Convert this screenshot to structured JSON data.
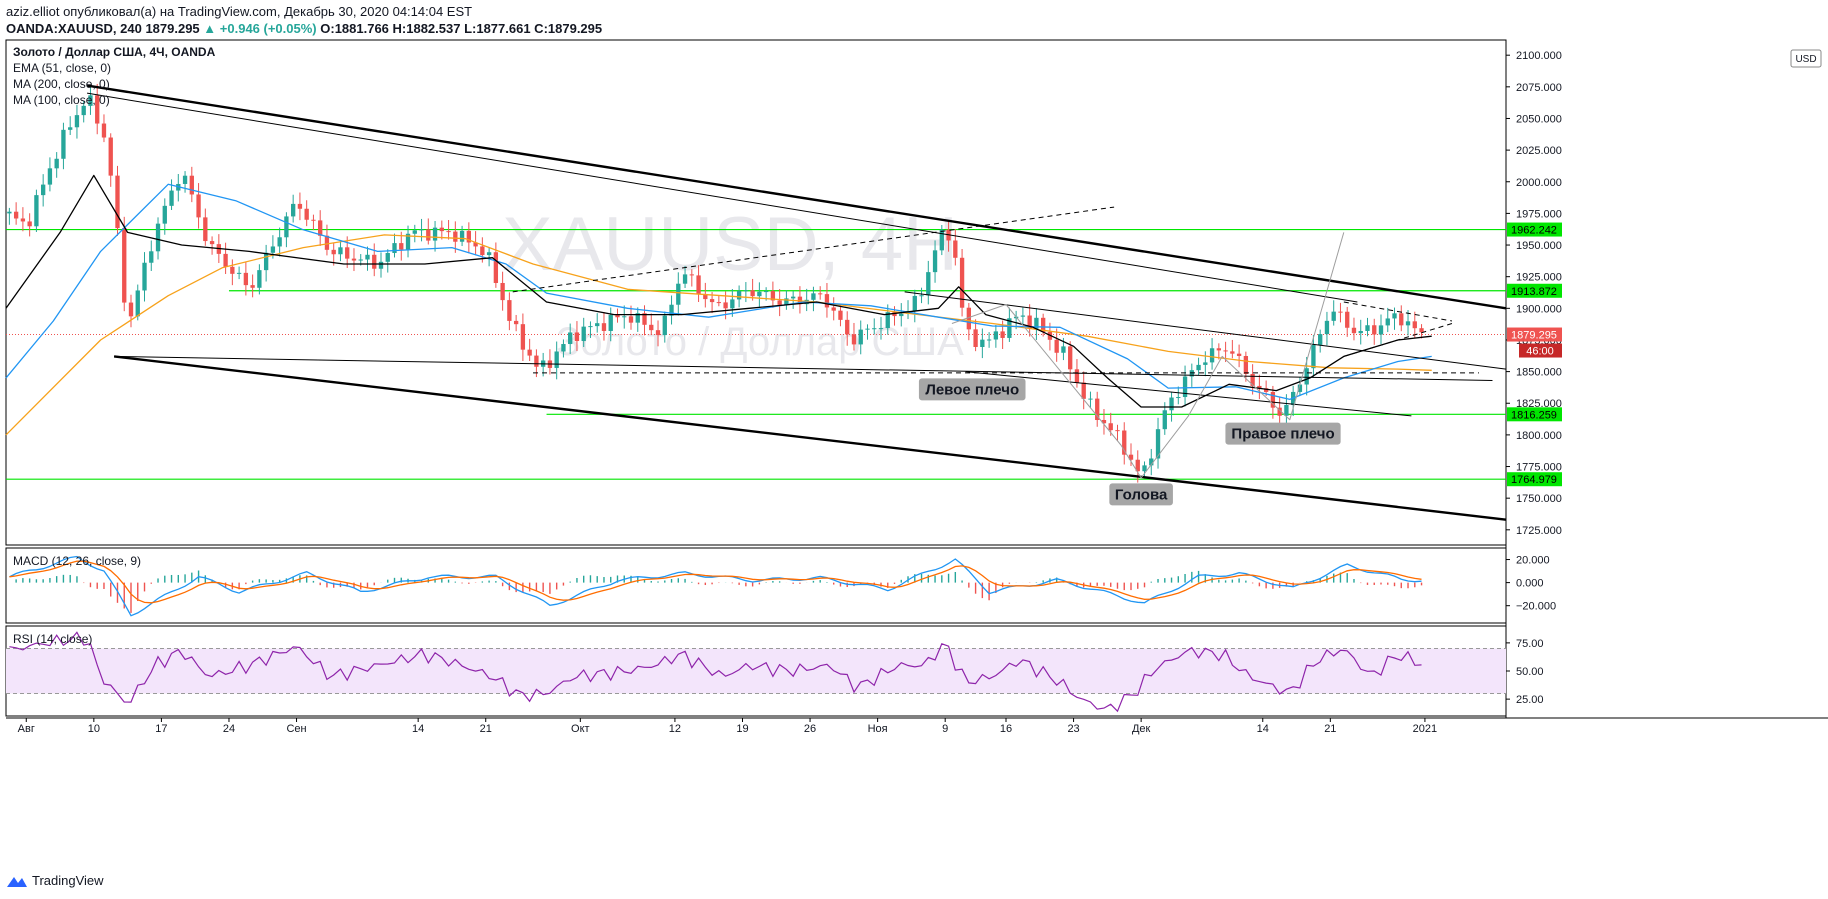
{
  "header": {
    "publisher_line": "aziz.elliot опубликовал(а) на TradingView.com, Декабрь 30, 2020 04:14:04 EST",
    "symbol": "OANDA:XAUUSD, 240",
    "last": "1879.295",
    "change": "▲ +0.946 (+0.05%)",
    "ohlc": "O:1881.766 H:1882.537 L:1877.661 C:1879.295"
  },
  "legend": {
    "title": "Золото / Доллар США, 4Ч, OANDA",
    "ema51": "EMA (51, close, 0)",
    "ma200": "MA (200, close, 0)",
    "ma100": "MA (100, close, 0)"
  },
  "watermark": {
    "big": "XAUUSD, 4H",
    "small": "Золото / Доллар США"
  },
  "currency_badge": "USD",
  "annotations": {
    "left_shoulder": "Левое плечо",
    "head": "Голова",
    "right_shoulder": "Правое плечо"
  },
  "macd": {
    "title": "MACD (12, 26, close, 9)",
    "ticks": [
      "20.000",
      "0.000",
      "−20.000"
    ]
  },
  "rsi": {
    "title": "RSI (14, close)",
    "ticks": [
      "75.00",
      "50.00",
      "25.00"
    ]
  },
  "footer": {
    "brand": "TradingView"
  },
  "colors": {
    "ema": "#000000",
    "ma200": "#f7a21b",
    "ma100": "#2196f3",
    "level": "#00e600",
    "up": "#26a69a",
    "down": "#ef5350"
  },
  "chart_data": {
    "type": "candlestick",
    "price_axis": [
      "2100.000",
      "2075.000",
      "2050.000",
      "2025.000",
      "2000.000",
      "1975.000",
      "1950.000",
      "1925.000",
      "1900.000",
      "1875.000",
      "1850.000",
      "1825.000",
      "1800.000",
      "1775.000",
      "1750.000",
      "1725.000"
    ],
    "price_axis_values": [
      2100,
      2075,
      2050,
      2025,
      2000,
      1975,
      1950,
      1925,
      1900,
      1875,
      1850,
      1825,
      1800,
      1775,
      1750,
      1725
    ],
    "ylim": [
      1713,
      2112
    ],
    "x_ticks": [
      "Авг",
      "10",
      "17",
      "24",
      "Сен",
      "14",
      "21",
      "Окт",
      "12",
      "19",
      "26",
      "Ноя",
      "9",
      "16",
      "23",
      "Дек",
      "14",
      "21",
      "2021"
    ],
    "x_tick_index": [
      3,
      13,
      23,
      33,
      43,
      61,
      71,
      85,
      99,
      109,
      119,
      129,
      139,
      148,
      158,
      168,
      186,
      196,
      210
    ],
    "xlim": [
      0,
      222
    ],
    "levels": [
      {
        "value": 1962.242,
        "label": "1962.242"
      },
      {
        "value": 1913.872,
        "label": "1913.872"
      },
      {
        "value": 1816.259,
        "label": "1816.259"
      },
      {
        "value": 1764.979,
        "label": "1764.979"
      }
    ],
    "current_price": {
      "value": 1879.295,
      "label": "1879.295",
      "timer": "46:00"
    },
    "anchors": [
      [
        0,
        1975
      ],
      [
        3,
        1965
      ],
      [
        8,
        2030
      ],
      [
        12,
        2068
      ],
      [
        15,
        2030
      ],
      [
        18,
        1885
      ],
      [
        22,
        1960
      ],
      [
        26,
        2010
      ],
      [
        30,
        1950
      ],
      [
        36,
        1915
      ],
      [
        43,
        1985
      ],
      [
        48,
        1945
      ],
      [
        55,
        1935
      ],
      [
        60,
        1960
      ],
      [
        66,
        1960
      ],
      [
        71,
        1945
      ],
      [
        75,
        1885
      ],
      [
        79,
        1850
      ],
      [
        84,
        1880
      ],
      [
        92,
        1895
      ],
      [
        97,
        1880
      ],
      [
        100,
        1930
      ],
      [
        105,
        1900
      ],
      [
        110,
        1915
      ],
      [
        115,
        1905
      ],
      [
        121,
        1910
      ],
      [
        125,
        1875
      ],
      [
        130,
        1890
      ],
      [
        135,
        1905
      ],
      [
        138,
        1955
      ],
      [
        140,
        1960
      ],
      [
        142,
        1880
      ],
      [
        145,
        1872
      ],
      [
        150,
        1895
      ],
      [
        153,
        1885
      ],
      [
        157,
        1860
      ],
      [
        160,
        1825
      ],
      [
        165,
        1795
      ],
      [
        168,
        1765
      ],
      [
        172,
        1825
      ],
      [
        177,
        1860
      ],
      [
        181,
        1870
      ],
      [
        184,
        1845
      ],
      [
        189,
        1815
      ],
      [
        193,
        1860
      ],
      [
        196,
        1900
      ],
      [
        200,
        1880
      ],
      [
        203,
        1885
      ],
      [
        206,
        1895
      ],
      [
        209,
        1880
      ]
    ],
    "ema51": [
      [
        0,
        1900
      ],
      [
        8,
        1960
      ],
      [
        13,
        2005
      ],
      [
        18,
        1960
      ],
      [
        26,
        1950
      ],
      [
        36,
        1945
      ],
      [
        50,
        1935
      ],
      [
        62,
        1935
      ],
      [
        72,
        1940
      ],
      [
        80,
        1905
      ],
      [
        90,
        1895
      ],
      [
        100,
        1895
      ],
      [
        110,
        1900
      ],
      [
        120,
        1905
      ],
      [
        130,
        1895
      ],
      [
        138,
        1900
      ],
      [
        141,
        1917
      ],
      [
        145,
        1895
      ],
      [
        152,
        1885
      ],
      [
        158,
        1870
      ],
      [
        163,
        1845
      ],
      [
        168,
        1822
      ],
      [
        174,
        1822
      ],
      [
        181,
        1840
      ],
      [
        188,
        1835
      ],
      [
        193,
        1845
      ],
      [
        198,
        1862
      ],
      [
        206,
        1875
      ],
      [
        211,
        1878
      ]
    ],
    "ma100": [
      [
        0,
        1845
      ],
      [
        7,
        1890
      ],
      [
        14,
        1945
      ],
      [
        24,
        1998
      ],
      [
        34,
        1985
      ],
      [
        44,
        1962
      ],
      [
        55,
        1945
      ],
      [
        66,
        1948
      ],
      [
        74,
        1935
      ],
      [
        80,
        1912
      ],
      [
        92,
        1900
      ],
      [
        104,
        1893
      ],
      [
        118,
        1905
      ],
      [
        128,
        1902
      ],
      [
        138,
        1893
      ],
      [
        146,
        1886
      ],
      [
        156,
        1885
      ],
      [
        166,
        1860
      ],
      [
        172,
        1837
      ],
      [
        182,
        1838
      ],
      [
        190,
        1828
      ],
      [
        198,
        1845
      ],
      [
        206,
        1858
      ],
      [
        211,
        1862
      ]
    ],
    "ma200": [
      [
        0,
        1800
      ],
      [
        14,
        1875
      ],
      [
        24,
        1910
      ],
      [
        32,
        1932
      ],
      [
        44,
        1948
      ],
      [
        56,
        1958
      ],
      [
        68,
        1955
      ],
      [
        78,
        1935
      ],
      [
        92,
        1915
      ],
      [
        106,
        1910
      ],
      [
        120,
        1905
      ],
      [
        132,
        1897
      ],
      [
        146,
        1888
      ],
      [
        160,
        1878
      ],
      [
        172,
        1866
      ],
      [
        184,
        1858
      ],
      [
        196,
        1853
      ],
      [
        206,
        1852
      ],
      [
        211,
        1851
      ]
    ],
    "trendlines": [
      {
        "p1": [
          12,
          2076
        ],
        "p2": [
          222,
          1900
        ],
        "width": 2.4,
        "color": "#000000"
      },
      {
        "p1": [
          16,
          1862
        ],
        "p2": [
          222,
          1733
        ],
        "width": 2.4,
        "color": "#000000"
      },
      {
        "p1": [
          12,
          2070
        ],
        "p2": [
          200,
          1905
        ],
        "width": 1,
        "color": "#000000"
      },
      {
        "p1": [
          16,
          1862
        ],
        "p2": [
          220,
          1843
        ],
        "width": 1,
        "color": "#000000"
      },
      {
        "p1": [
          133,
          1913
        ],
        "p2": [
          222,
          1852
        ],
        "width": 1,
        "color": "#000000"
      },
      {
        "p1": [
          75,
          1913
        ],
        "p2": [
          164,
          1980
        ],
        "width": 1,
        "color": "#000000",
        "dash": true
      },
      {
        "p1": [
          78,
          1849
        ],
        "p2": [
          218,
          1849
        ],
        "width": 1,
        "color": "#000000",
        "dash": true
      },
      {
        "p1": [
          198,
          1905
        ],
        "p2": [
          214,
          1890
        ],
        "width": 1,
        "color": "#000000",
        "dash": true
      },
      {
        "p1": [
          198,
          1862
        ],
        "p2": [
          214,
          1888
        ],
        "width": 1,
        "color": "#000000",
        "dash": true
      },
      {
        "p1": [
          142,
          1850
        ],
        "p2": [
          208,
          1815
        ],
        "width": 1,
        "color": "#000000"
      }
    ],
    "pattern_lines": [
      [
        [
          140,
          1888
        ],
        [
          148,
          1903
        ],
        [
          165,
          1792
        ],
        [
          168,
          1766
        ],
        [
          175,
          1815
        ],
        [
          180,
          1862
        ],
        [
          190,
          1812
        ],
        [
          198,
          1960
        ]
      ]
    ],
    "annotation_pos": {
      "left_shoulder": [
        143,
        1836
      ],
      "head": [
        168,
        1753
      ],
      "right_shoulder": [
        189,
        1801
      ]
    },
    "macd_series": {
      "anchors": [
        [
          0,
          5
        ],
        [
          10,
          22
        ],
        [
          14,
          10
        ],
        [
          18,
          -28
        ],
        [
          22,
          -15
        ],
        [
          28,
          5
        ],
        [
          34,
          -8
        ],
        [
          44,
          8
        ],
        [
          52,
          -8
        ],
        [
          62,
          5
        ],
        [
          72,
          5
        ],
        [
          80,
          -20
        ],
        [
          90,
          2
        ],
        [
          100,
          8
        ],
        [
          110,
          2
        ],
        [
          120,
          4
        ],
        [
          130,
          -6
        ],
        [
          140,
          20
        ],
        [
          145,
          -8
        ],
        [
          155,
          2
        ],
        [
          160,
          -5
        ],
        [
          168,
          -18
        ],
        [
          176,
          5
        ],
        [
          182,
          8
        ],
        [
          190,
          -5
        ],
        [
          198,
          15
        ],
        [
          206,
          3
        ],
        [
          211,
          1
        ]
      ],
      "ylim": [
        -35,
        30
      ]
    },
    "rsi_series": {
      "anchors": [
        [
          0,
          68
        ],
        [
          6,
          75
        ],
        [
          12,
          80
        ],
        [
          14,
          45
        ],
        [
          18,
          20
        ],
        [
          22,
          55
        ],
        [
          26,
          68
        ],
        [
          30,
          45
        ],
        [
          36,
          55
        ],
        [
          43,
          72
        ],
        [
          48,
          45
        ],
        [
          55,
          55
        ],
        [
          62,
          65
        ],
        [
          66,
          58
        ],
        [
          72,
          45
        ],
        [
          76,
          28
        ],
        [
          80,
          30
        ],
        [
          84,
          45
        ],
        [
          92,
          50
        ],
        [
          96,
          55
        ],
        [
          100,
          65
        ],
        [
          106,
          45
        ],
        [
          110,
          55
        ],
        [
          116,
          50
        ],
        [
          122,
          55
        ],
        [
          126,
          35
        ],
        [
          132,
          55
        ],
        [
          136,
          55
        ],
        [
          139,
          75
        ],
        [
          142,
          40
        ],
        [
          146,
          45
        ],
        [
          150,
          60
        ],
        [
          156,
          40
        ],
        [
          159,
          25
        ],
        [
          163,
          15
        ],
        [
          167,
          30
        ],
        [
          170,
          52
        ],
        [
          175,
          68
        ],
        [
          180,
          65
        ],
        [
          184,
          45
        ],
        [
          190,
          30
        ],
        [
          194,
          60
        ],
        [
          198,
          70
        ],
        [
          202,
          45
        ],
        [
          206,
          65
        ],
        [
          211,
          52
        ]
      ],
      "ylim": [
        10,
        90
      ],
      "band": [
        30,
        70
      ]
    }
  }
}
